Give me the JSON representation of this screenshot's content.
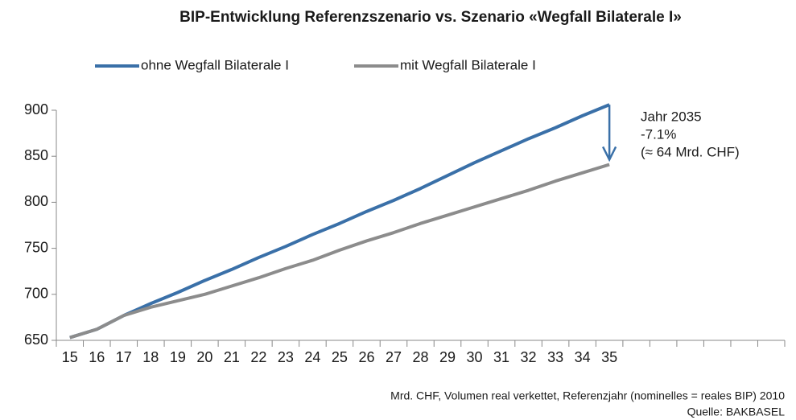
{
  "chart_data": {
    "type": "line",
    "title": "BIP-Entwicklung Referenzszenario vs. Szenario «Wegfall Bilaterale I»",
    "categories": [
      "15",
      "16",
      "17",
      "18",
      "19",
      "20",
      "21",
      "22",
      "23",
      "24",
      "25",
      "26",
      "27",
      "28",
      "29",
      "30",
      "31",
      "32",
      "33",
      "34",
      "35",
      null,
      null,
      null,
      null,
      null,
      null
    ],
    "series": [
      {
        "name": "ohne Wegfall Bilaterale I",
        "color": "#3a70a8",
        "values": [
          653,
          662,
          677,
          690,
          702,
          715,
          727,
          740,
          752,
          765,
          777,
          790,
          802,
          815,
          829,
          843,
          856,
          869,
          881,
          894,
          906,
          null,
          null,
          null,
          null,
          null,
          null
        ]
      },
      {
        "name": "mit Wegfall Bilaterale I",
        "color": "#8c8c8c",
        "values": [
          653,
          662,
          677,
          686,
          693,
          700,
          709,
          718,
          728,
          737,
          748,
          758,
          767,
          777,
          786,
          795,
          804,
          813,
          823,
          832,
          841,
          null,
          null,
          null,
          null,
          null,
          null
        ]
      }
    ],
    "ylim": [
      650,
      900
    ],
    "yticks": [
      650,
      700,
      750,
      800,
      850,
      900
    ],
    "annotations": [
      "Jahr 2035",
      "-7.1%",
      "(≈ 64 Mrd. CHF)"
    ],
    "note": "Mrd. CHF, Volumen real verkettet, Referenzjahr (nominelles = reales BIP) 2010",
    "source": "Quelle: BAKBASEL",
    "legend": "top"
  }
}
